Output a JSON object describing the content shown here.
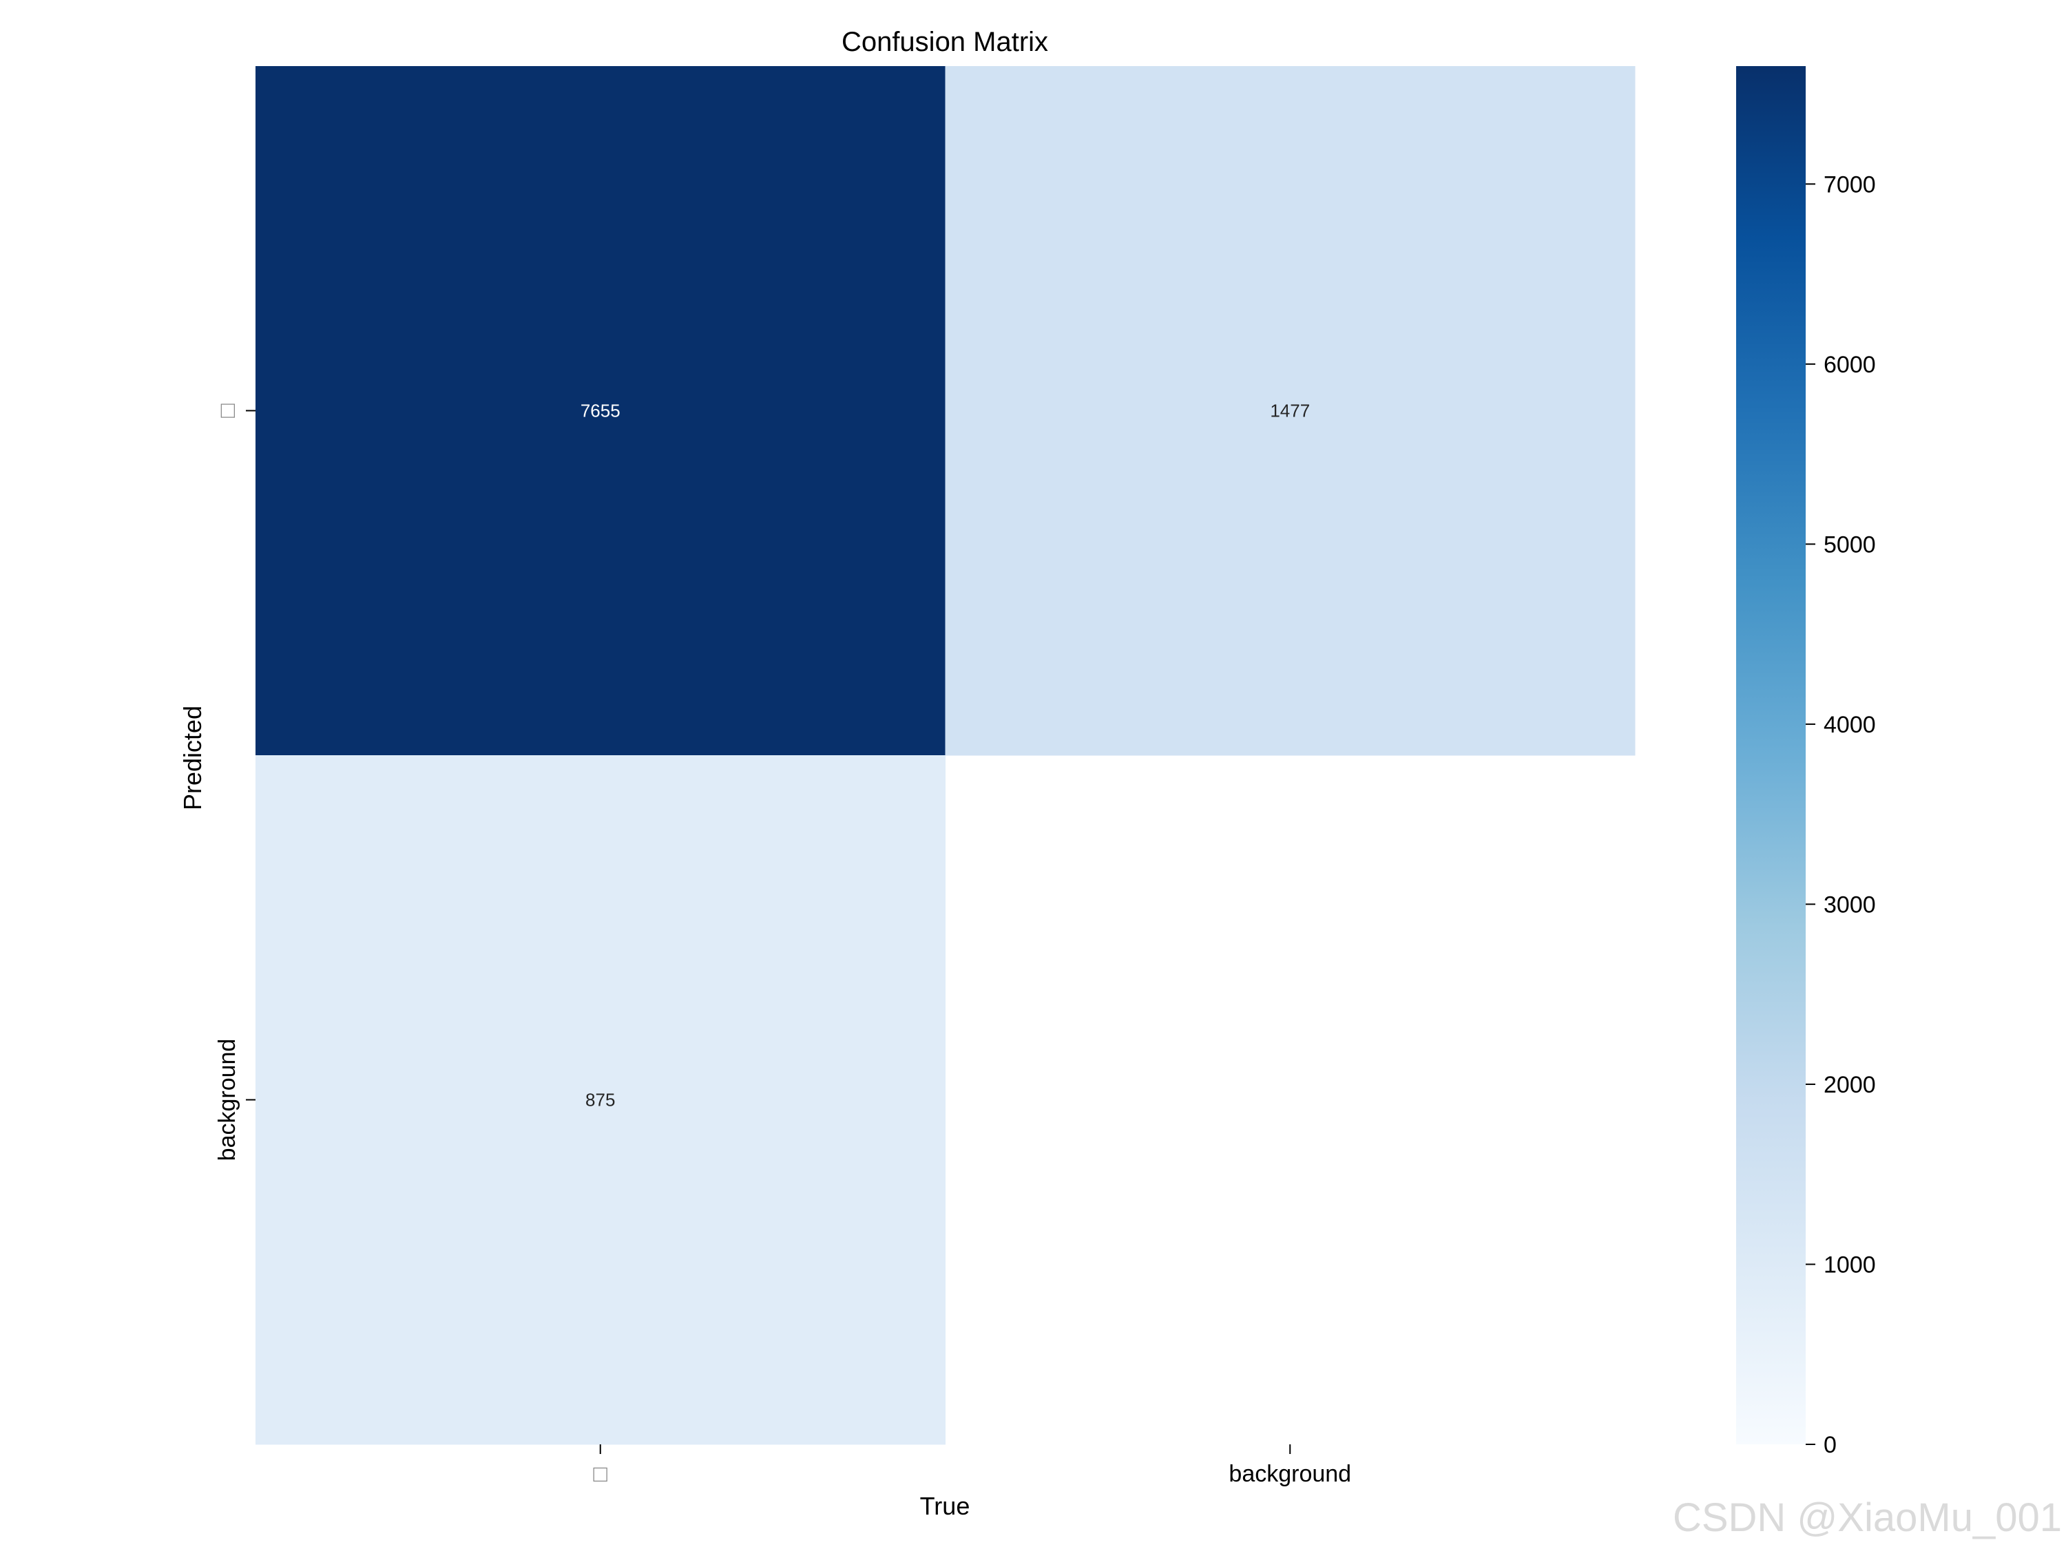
{
  "chart_data": {
    "type": "heatmap",
    "title": "Confusion Matrix",
    "xlabel": "True",
    "ylabel": "Predicted",
    "x_categories": [
      "□",
      "background"
    ],
    "y_categories": [
      "□",
      "background"
    ],
    "values": [
      [
        7655,
        1477
      ],
      [
        875,
        null
      ]
    ],
    "cell_labels": [
      [
        "7655",
        "1477"
      ],
      [
        "875",
        ""
      ]
    ],
    "colormap": "Blues",
    "colorbar": {
      "min": 0,
      "max": 7655,
      "ticks": [
        0,
        1000,
        2000,
        3000,
        4000,
        5000,
        6000,
        7000
      ],
      "tick_labels": [
        "0",
        "1000",
        "2000",
        "3000",
        "4000",
        "5000",
        "6000",
        "7000"
      ]
    },
    "grid": false
  },
  "watermark": "CSDN @XiaoMu_001"
}
